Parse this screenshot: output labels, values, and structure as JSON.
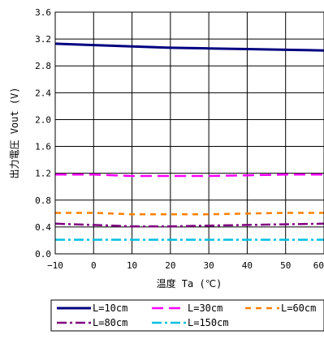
{
  "chart_data": {
    "type": "line",
    "xlabel": "温度 Ta (℃)",
    "ylabel": "出力電圧 Vout (V)",
    "xlim": [
      -10,
      60
    ],
    "ylim": [
      0.0,
      3.6
    ],
    "xticks": [
      -10,
      0,
      10,
      20,
      30,
      40,
      50,
      60
    ],
    "xtick_labels": [
      "−10",
      "0",
      "10",
      "20",
      "30",
      "40",
      "50",
      "60"
    ],
    "yticks": [
      0.0,
      0.4,
      0.8,
      1.2,
      1.6,
      2.0,
      2.4,
      2.8,
      3.2,
      3.6
    ],
    "ytick_labels": [
      "0.0",
      "0.4",
      "0.8",
      "1.2",
      "1.6",
      "2.0",
      "2.4",
      "2.8",
      "3.2",
      "3.6"
    ],
    "grid": true,
    "legend_position": "bottom",
    "x": [
      -10,
      0,
      10,
      20,
      30,
      40,
      50,
      60
    ],
    "series": [
      {
        "name": "L=10cm",
        "color": "#000080",
        "dash": "solid",
        "values": [
          3.13,
          3.11,
          3.09,
          3.07,
          3.06,
          3.05,
          3.04,
          3.03
        ]
      },
      {
        "name": "L=30cm",
        "color": "#ff00ff",
        "dash": "long-dash",
        "values": [
          1.18,
          1.18,
          1.16,
          1.16,
          1.16,
          1.17,
          1.18,
          1.18
        ]
      },
      {
        "name": "L=60cm",
        "color": "#ff8000",
        "dash": "dash",
        "values": [
          0.61,
          0.61,
          0.59,
          0.59,
          0.59,
          0.6,
          0.61,
          0.61
        ]
      },
      {
        "name": "L=80cm",
        "color": "#800080",
        "dash": "dash-dot",
        "values": [
          0.45,
          0.43,
          0.41,
          0.41,
          0.42,
          0.43,
          0.44,
          0.45
        ]
      },
      {
        "name": "L=150cm",
        "color": "#00c0e0",
        "dash": "dash-dot",
        "values": [
          0.21,
          0.21,
          0.21,
          0.21,
          0.21,
          0.21,
          0.21,
          0.21
        ]
      }
    ]
  }
}
